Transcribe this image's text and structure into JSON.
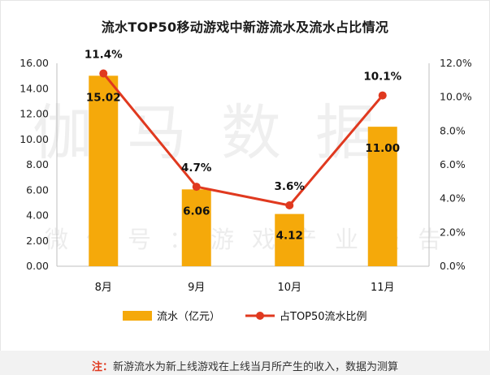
{
  "title": "流水TOP50移动游戏中新游流水及流水占比情况",
  "watermark": {
    "main": "伽马数据",
    "sub": "微信号：游戏产业报告"
  },
  "footer": {
    "label": "注：",
    "text": "新游流水为新上线游戏在上线当月所产生的收入，数据为测算"
  },
  "colors": {
    "bar": "#f5a90a",
    "line": "#e0391f",
    "axis": "#bfbfbf",
    "text": "#1a1a1a"
  },
  "chart_data": {
    "type": "bar",
    "title": "流水TOP50移动游戏中新游流水及流水占比情况",
    "categories": [
      "8月",
      "9月",
      "10月",
      "11月"
    ],
    "series": [
      {
        "name": "流水（亿元）",
        "type": "bar",
        "axis": "left",
        "values": [
          15.02,
          6.06,
          4.12,
          11.0
        ],
        "labels": [
          "15.02",
          "6.06",
          "4.12",
          "11.00"
        ]
      },
      {
        "name": "占TOP50流水比例",
        "type": "line",
        "axis": "right",
        "values": [
          11.4,
          4.7,
          3.6,
          10.1
        ],
        "labels": [
          "11.4%",
          "4.7%",
          "3.6%",
          "10.1%"
        ]
      }
    ],
    "y_left": {
      "min": 0,
      "max": 16,
      "step": 2,
      "ticks": [
        "0.00",
        "2.00",
        "4.00",
        "6.00",
        "8.00",
        "10.00",
        "12.00",
        "14.00",
        "16.00"
      ]
    },
    "y_right": {
      "min": 0,
      "max": 12,
      "step": 2,
      "ticks": [
        "0.0%",
        "2.0%",
        "4.0%",
        "6.0%",
        "8.0%",
        "10.0%",
        "12.0%"
      ]
    },
    "legend_position": "bottom",
    "grid": false
  }
}
